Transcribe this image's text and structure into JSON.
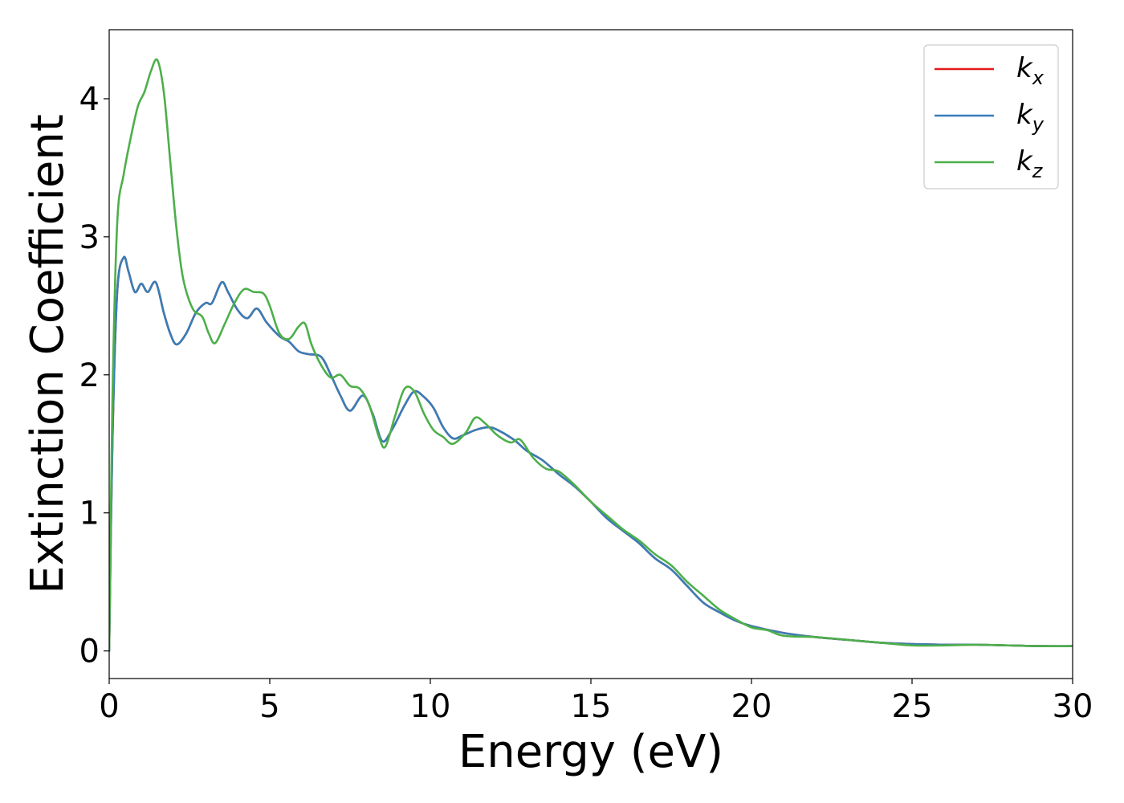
{
  "chart_data": {
    "type": "line",
    "title": "",
    "xlabel": "Energy (eV)",
    "ylabel": "Extinction Coefficient",
    "xlim": [
      0,
      30
    ],
    "ylim": [
      -0.2,
      4.5
    ],
    "x_ticks": [
      0,
      5,
      10,
      15,
      20,
      25,
      30
    ],
    "y_ticks": [
      0,
      1,
      2,
      3,
      4
    ],
    "grid": false,
    "legend": {
      "placement": "top-right",
      "entries": [
        {
          "base": "k",
          "sub": "x",
          "color": "#e41a1c"
        },
        {
          "base": "k",
          "sub": "y",
          "color": "#377eb8"
        },
        {
          "base": "k",
          "sub": "z",
          "color": "#4daf4a"
        }
      ]
    },
    "series": [
      {
        "name": "k_x",
        "color": "#e41a1c",
        "points": [
          [
            0,
            0
          ],
          [
            0.1,
            1.5
          ],
          [
            0.25,
            2.6
          ],
          [
            0.45,
            2.85
          ],
          [
            0.6,
            2.75
          ],
          [
            0.8,
            2.6
          ],
          [
            1.0,
            2.66
          ],
          [
            1.2,
            2.6
          ],
          [
            1.45,
            2.67
          ],
          [
            1.7,
            2.45
          ],
          [
            1.9,
            2.3
          ],
          [
            2.1,
            2.22
          ],
          [
            2.4,
            2.3
          ],
          [
            2.7,
            2.45
          ],
          [
            3.0,
            2.52
          ],
          [
            3.2,
            2.52
          ],
          [
            3.5,
            2.67
          ],
          [
            3.7,
            2.6
          ],
          [
            4.0,
            2.47
          ],
          [
            4.3,
            2.41
          ],
          [
            4.6,
            2.48
          ],
          [
            4.9,
            2.38
          ],
          [
            5.3,
            2.28
          ],
          [
            5.6,
            2.24
          ],
          [
            5.9,
            2.17
          ],
          [
            6.2,
            2.15
          ],
          [
            6.6,
            2.13
          ],
          [
            6.9,
            2.0
          ],
          [
            7.2,
            1.85
          ],
          [
            7.5,
            1.74
          ],
          [
            7.9,
            1.85
          ],
          [
            8.2,
            1.72
          ],
          [
            8.5,
            1.52
          ],
          [
            8.8,
            1.6
          ],
          [
            9.2,
            1.78
          ],
          [
            9.5,
            1.88
          ],
          [
            9.8,
            1.84
          ],
          [
            10.1,
            1.76
          ],
          [
            10.4,
            1.62
          ],
          [
            10.7,
            1.54
          ],
          [
            11.0,
            1.56
          ],
          [
            11.4,
            1.6
          ],
          [
            11.8,
            1.62
          ],
          [
            12.1,
            1.6
          ],
          [
            12.6,
            1.53
          ],
          [
            13.0,
            1.45
          ],
          [
            13.5,
            1.38
          ],
          [
            14.0,
            1.28
          ],
          [
            14.5,
            1.19
          ],
          [
            15.0,
            1.08
          ],
          [
            15.5,
            0.96
          ],
          [
            16.0,
            0.87
          ],
          [
            16.5,
            0.78
          ],
          [
            17.0,
            0.67
          ],
          [
            17.5,
            0.59
          ],
          [
            18.0,
            0.47
          ],
          [
            18.5,
            0.35
          ],
          [
            19.0,
            0.28
          ],
          [
            19.5,
            0.22
          ],
          [
            20.0,
            0.18
          ],
          [
            21.0,
            0.13
          ],
          [
            22.0,
            0.1
          ],
          [
            23.0,
            0.08
          ],
          [
            24.0,
            0.06
          ],
          [
            25.0,
            0.05
          ],
          [
            26.0,
            0.045
          ],
          [
            27.0,
            0.045
          ],
          [
            28.0,
            0.04
          ],
          [
            29.0,
            0.035
          ],
          [
            30.0,
            0.035
          ]
        ]
      },
      {
        "name": "k_y",
        "color": "#377eb8",
        "points": [
          [
            0,
            0
          ],
          [
            0.1,
            1.5
          ],
          [
            0.25,
            2.6
          ],
          [
            0.45,
            2.85
          ],
          [
            0.6,
            2.75
          ],
          [
            0.8,
            2.6
          ],
          [
            1.0,
            2.66
          ],
          [
            1.2,
            2.6
          ],
          [
            1.45,
            2.67
          ],
          [
            1.7,
            2.45
          ],
          [
            1.9,
            2.3
          ],
          [
            2.1,
            2.22
          ],
          [
            2.4,
            2.3
          ],
          [
            2.7,
            2.45
          ],
          [
            3.0,
            2.52
          ],
          [
            3.2,
            2.52
          ],
          [
            3.5,
            2.67
          ],
          [
            3.7,
            2.6
          ],
          [
            4.0,
            2.47
          ],
          [
            4.3,
            2.41
          ],
          [
            4.6,
            2.48
          ],
          [
            4.9,
            2.38
          ],
          [
            5.3,
            2.28
          ],
          [
            5.6,
            2.24
          ],
          [
            5.9,
            2.17
          ],
          [
            6.2,
            2.15
          ],
          [
            6.6,
            2.13
          ],
          [
            6.9,
            2.0
          ],
          [
            7.2,
            1.85
          ],
          [
            7.5,
            1.74
          ],
          [
            7.9,
            1.85
          ],
          [
            8.2,
            1.72
          ],
          [
            8.5,
            1.52
          ],
          [
            8.8,
            1.6
          ],
          [
            9.2,
            1.78
          ],
          [
            9.5,
            1.88
          ],
          [
            9.8,
            1.84
          ],
          [
            10.1,
            1.76
          ],
          [
            10.4,
            1.62
          ],
          [
            10.7,
            1.54
          ],
          [
            11.0,
            1.56
          ],
          [
            11.4,
            1.6
          ],
          [
            11.8,
            1.62
          ],
          [
            12.1,
            1.6
          ],
          [
            12.6,
            1.53
          ],
          [
            13.0,
            1.45
          ],
          [
            13.5,
            1.38
          ],
          [
            14.0,
            1.28
          ],
          [
            14.5,
            1.19
          ],
          [
            15.0,
            1.08
          ],
          [
            15.5,
            0.96
          ],
          [
            16.0,
            0.87
          ],
          [
            16.5,
            0.78
          ],
          [
            17.0,
            0.67
          ],
          [
            17.5,
            0.59
          ],
          [
            18.0,
            0.47
          ],
          [
            18.5,
            0.35
          ],
          [
            19.0,
            0.28
          ],
          [
            19.5,
            0.22
          ],
          [
            20.0,
            0.18
          ],
          [
            21.0,
            0.13
          ],
          [
            22.0,
            0.1
          ],
          [
            23.0,
            0.08
          ],
          [
            24.0,
            0.06
          ],
          [
            25.0,
            0.05
          ],
          [
            26.0,
            0.045
          ],
          [
            27.0,
            0.045
          ],
          [
            28.0,
            0.04
          ],
          [
            29.0,
            0.035
          ],
          [
            30.0,
            0.035
          ]
        ]
      },
      {
        "name": "k_z",
        "color": "#4daf4a",
        "points": [
          [
            0,
            0
          ],
          [
            0.1,
            1.8
          ],
          [
            0.25,
            3.1
          ],
          [
            0.45,
            3.45
          ],
          [
            0.7,
            3.75
          ],
          [
            0.9,
            3.95
          ],
          [
            1.1,
            4.05
          ],
          [
            1.3,
            4.2
          ],
          [
            1.5,
            4.28
          ],
          [
            1.7,
            4.05
          ],
          [
            1.9,
            3.55
          ],
          [
            2.1,
            3.05
          ],
          [
            2.3,
            2.7
          ],
          [
            2.6,
            2.48
          ],
          [
            2.9,
            2.42
          ],
          [
            3.1,
            2.3
          ],
          [
            3.3,
            2.23
          ],
          [
            3.6,
            2.37
          ],
          [
            3.9,
            2.52
          ],
          [
            4.2,
            2.62
          ],
          [
            4.5,
            2.6
          ],
          [
            4.8,
            2.59
          ],
          [
            5.0,
            2.5
          ],
          [
            5.3,
            2.3
          ],
          [
            5.6,
            2.26
          ],
          [
            5.9,
            2.35
          ],
          [
            6.1,
            2.37
          ],
          [
            6.3,
            2.22
          ],
          [
            6.6,
            2.07
          ],
          [
            6.9,
            1.98
          ],
          [
            7.2,
            2.0
          ],
          [
            7.5,
            1.92
          ],
          [
            7.8,
            1.9
          ],
          [
            8.1,
            1.78
          ],
          [
            8.4,
            1.55
          ],
          [
            8.6,
            1.48
          ],
          [
            8.9,
            1.7
          ],
          [
            9.2,
            1.9
          ],
          [
            9.5,
            1.88
          ],
          [
            9.8,
            1.72
          ],
          [
            10.1,
            1.6
          ],
          [
            10.4,
            1.55
          ],
          [
            10.7,
            1.5
          ],
          [
            11.1,
            1.58
          ],
          [
            11.4,
            1.69
          ],
          [
            11.7,
            1.65
          ],
          [
            12.1,
            1.56
          ],
          [
            12.5,
            1.51
          ],
          [
            12.8,
            1.53
          ],
          [
            13.2,
            1.4
          ],
          [
            13.6,
            1.32
          ],
          [
            14.0,
            1.3
          ],
          [
            14.5,
            1.2
          ],
          [
            15.0,
            1.08
          ],
          [
            15.5,
            0.98
          ],
          [
            16.0,
            0.88
          ],
          [
            16.5,
            0.8
          ],
          [
            17.0,
            0.7
          ],
          [
            17.5,
            0.62
          ],
          [
            18.0,
            0.5
          ],
          [
            18.5,
            0.4
          ],
          [
            19.0,
            0.3
          ],
          [
            19.5,
            0.23
          ],
          [
            20.0,
            0.17
          ],
          [
            20.5,
            0.15
          ],
          [
            21.0,
            0.11
          ],
          [
            22.0,
            0.1
          ],
          [
            23.0,
            0.08
          ],
          [
            24.0,
            0.06
          ],
          [
            25.0,
            0.04
          ],
          [
            26.0,
            0.04
          ],
          [
            27.0,
            0.045
          ],
          [
            28.0,
            0.04
          ],
          [
            29.0,
            0.035
          ],
          [
            30.0,
            0.035
          ]
        ]
      }
    ]
  }
}
